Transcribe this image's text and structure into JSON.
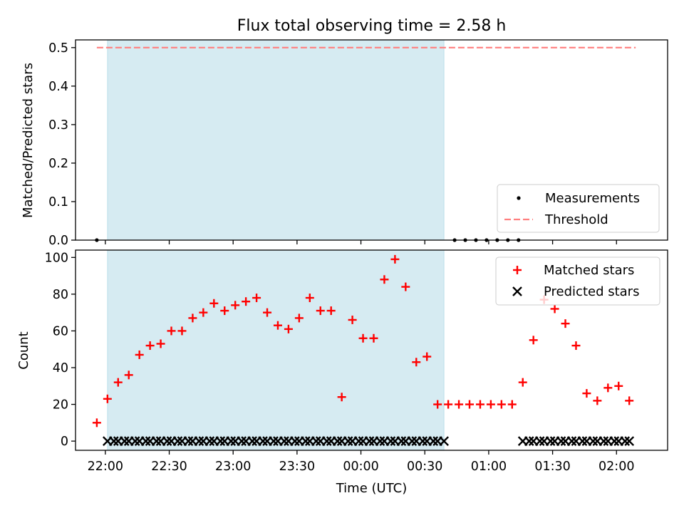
{
  "title": "Flux total observing time = 2.58 h",
  "chart_data": [
    {
      "type": "scatter",
      "ylabel": "Matched/Predicted stars",
      "xlabel": "",
      "x_range": [
        "21:46",
        "02:24"
      ],
      "ylim": [
        0,
        0.52
      ],
      "yticks": [
        0.0,
        0.1,
        0.2,
        0.3,
        0.4,
        0.5
      ],
      "ytick_labels": [
        "0.0",
        "0.1",
        "0.2",
        "0.3",
        "0.4",
        "0.5"
      ],
      "shaded_interval": [
        "22:01",
        "00:39"
      ],
      "shade_color": "#add8e6",
      "series": [
        {
          "name": "Measurements",
          "marker": "dot",
          "color": "#000000",
          "points": [
            {
              "x": "21:56",
              "y": 0
            },
            {
              "x": "00:44",
              "y": 0
            },
            {
              "x": "00:49",
              "y": 0
            },
            {
              "x": "00:54",
              "y": 0
            },
            {
              "x": "00:59",
              "y": 0
            },
            {
              "x": "01:04",
              "y": 0
            },
            {
              "x": "01:09",
              "y": 0
            },
            {
              "x": "01:14",
              "y": 0
            }
          ]
        },
        {
          "name": "Threshold",
          "marker": "dashed-line",
          "color": "#ff7f7f",
          "points": [
            {
              "x": "21:56",
              "y": 0.5
            },
            {
              "x": "02:09",
              "y": 0.5
            }
          ]
        }
      ],
      "legend": "lower-right"
    },
    {
      "type": "scatter",
      "ylabel": "Count",
      "xlabel": "Time (UTC)",
      "x_range": [
        "21:46",
        "02:24"
      ],
      "ylim": [
        -5,
        104
      ],
      "yticks": [
        0,
        20,
        40,
        60,
        80,
        100
      ],
      "ytick_labels": [
        "0",
        "20",
        "40",
        "60",
        "80",
        "100"
      ],
      "xtick_labels": [
        "22:00",
        "22:30",
        "23:00",
        "23:30",
        "00:00",
        "00:30",
        "01:00",
        "01:30",
        "02:00"
      ],
      "shaded_interval": [
        "22:01",
        "00:39"
      ],
      "shade_color": "#add8e6",
      "series": [
        {
          "name": "Matched stars",
          "marker": "plus",
          "color": "#ff0000",
          "x": [
            "21:56",
            "22:01",
            "22:06",
            "22:11",
            "22:16",
            "22:21",
            "22:26",
            "22:31",
            "22:36",
            "22:41",
            "22:46",
            "22:51",
            "22:56",
            "23:01",
            "23:06",
            "23:11",
            "23:16",
            "23:21",
            "23:26",
            "23:31",
            "23:36",
            "23:41",
            "23:46",
            "23:51",
            "23:56",
            "00:01",
            "00:06",
            "00:11",
            "00:16",
            "00:21",
            "00:26",
            "00:31",
            "00:36",
            "00:41",
            "00:46",
            "00:51",
            "00:56",
            "01:01",
            "01:06",
            "01:11",
            "01:16",
            "01:21",
            "01:26",
            "01:31",
            "01:36",
            "01:41",
            "01:46",
            "01:51",
            "01:56",
            "02:01",
            "02:06"
          ],
          "y": [
            10,
            23,
            32,
            36,
            47,
            52,
            53,
            60,
            60,
            67,
            70,
            75,
            71,
            74,
            76,
            78,
            70,
            63,
            61,
            67,
            78,
            71,
            71,
            24,
            66,
            56,
            56,
            88,
            99,
            84,
            43,
            46,
            20,
            20,
            20,
            20,
            20,
            20,
            20,
            20,
            32,
            55,
            77,
            72,
            64,
            52,
            26,
            22,
            29,
            30,
            22
          ]
        },
        {
          "name": "Predicted stars",
          "marker": "x",
          "color": "#000000",
          "x": [
            "22:01",
            "22:04",
            "22:06",
            "22:09",
            "22:11",
            "22:14",
            "22:16",
            "22:19",
            "22:21",
            "22:24",
            "22:26",
            "22:29",
            "22:31",
            "22:34",
            "22:36",
            "22:39",
            "22:41",
            "22:44",
            "22:46",
            "22:49",
            "22:51",
            "22:54",
            "22:56",
            "22:59",
            "23:01",
            "23:04",
            "23:06",
            "23:09",
            "23:11",
            "23:14",
            "23:16",
            "23:19",
            "23:21",
            "23:24",
            "23:26",
            "23:29",
            "23:31",
            "23:34",
            "23:36",
            "23:39",
            "23:41",
            "23:44",
            "23:46",
            "23:49",
            "23:51",
            "23:54",
            "23:56",
            "23:59",
            "00:01",
            "00:04",
            "00:06",
            "00:09",
            "00:11",
            "00:14",
            "00:16",
            "00:19",
            "00:21",
            "00:24",
            "00:26",
            "00:29",
            "00:31",
            "00:34",
            "00:36",
            "00:39",
            "01:16",
            "01:19",
            "01:21",
            "01:24",
            "01:26",
            "01:29",
            "01:31",
            "01:34",
            "01:36",
            "01:39",
            "01:41",
            "01:44",
            "01:46",
            "01:49",
            "01:51",
            "01:54",
            "01:56",
            "01:59",
            "02:01",
            "02:04",
            "02:06"
          ],
          "y": 0
        }
      ],
      "legend": "upper-right"
    }
  ]
}
